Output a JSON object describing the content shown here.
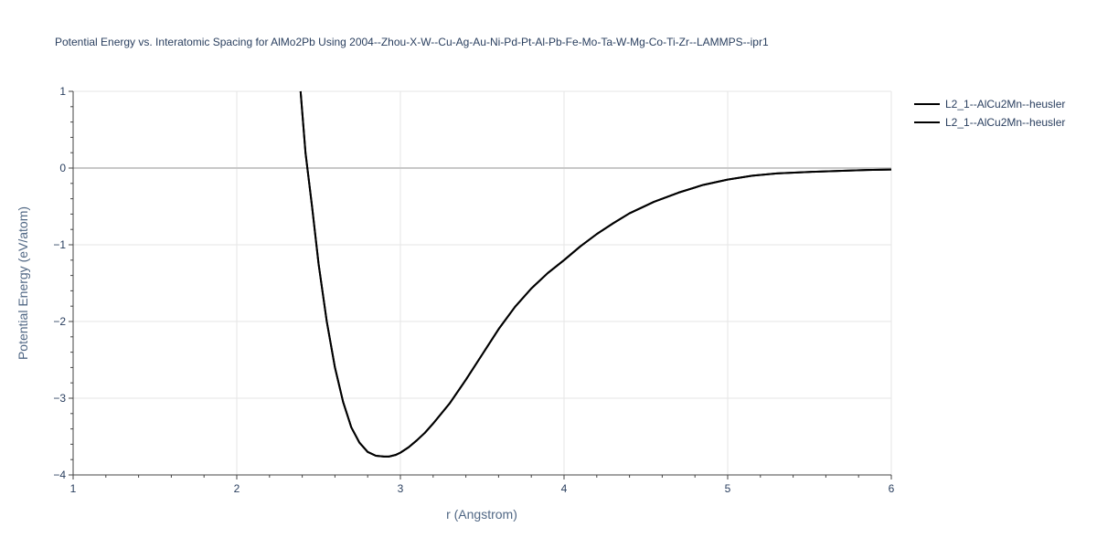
{
  "chart_data": {
    "type": "line",
    "title": "Potential Energy vs. Interatomic Spacing for AlMo2Pb Using 2004--Zhou-X-W--Cu-Ag-Au-Ni-Pd-Pt-Al-Pb-Fe-Mo-Ta-W-Mg-Co-Ti-Zr--LAMMPS--ipr1",
    "xlabel": "r (Angstrom)",
    "ylabel": "Potential Energy (eV/atom)",
    "xlim": [
      1,
      6
    ],
    "ylim": [
      -4,
      1
    ],
    "x_ticks": [
      "1",
      "2",
      "3",
      "4",
      "5",
      "6"
    ],
    "y_ticks": [
      "1",
      "0",
      "−1",
      "−2",
      "−3",
      "−4"
    ],
    "grid": true,
    "legend_position": "top-right",
    "series": [
      {
        "name": "L2_1--AlCu2Mn--heusler",
        "color": "#000000",
        "x": [
          2.39,
          2.42,
          2.46,
          2.5,
          2.55,
          2.6,
          2.65,
          2.7,
          2.75,
          2.8,
          2.85,
          2.9,
          2.93,
          2.97,
          3.0,
          3.05,
          3.1,
          3.15,
          3.2,
          3.3,
          3.4,
          3.5,
          3.6,
          3.7,
          3.8,
          3.9,
          4.0,
          4.1,
          4.2,
          4.3,
          4.4,
          4.55,
          4.7,
          4.85,
          5.0,
          5.15,
          5.3,
          5.5,
          5.7,
          5.85,
          6.0
        ],
        "y": [
          1.0,
          0.2,
          -0.5,
          -1.25,
          -2.0,
          -2.6,
          -3.05,
          -3.38,
          -3.58,
          -3.7,
          -3.75,
          -3.76,
          -3.76,
          -3.74,
          -3.71,
          -3.64,
          -3.55,
          -3.45,
          -3.33,
          -3.07,
          -2.76,
          -2.43,
          -2.1,
          -1.81,
          -1.57,
          -1.37,
          -1.2,
          -1.02,
          -0.86,
          -0.72,
          -0.59,
          -0.44,
          -0.32,
          -0.22,
          -0.15,
          -0.1,
          -0.07,
          -0.05,
          -0.035,
          -0.025,
          -0.02
        ]
      },
      {
        "name": "L2_1--AlCu2Mn--heusler",
        "color": "#000000",
        "x": [
          2.39,
          2.42,
          2.46,
          2.5,
          2.55,
          2.6,
          2.65,
          2.7,
          2.75,
          2.8,
          2.85,
          2.9,
          2.93,
          2.97,
          3.0,
          3.05,
          3.1,
          3.15,
          3.2,
          3.3,
          3.4,
          3.5,
          3.6,
          3.7,
          3.8,
          3.9,
          4.0,
          4.1,
          4.2,
          4.3,
          4.4,
          4.55,
          4.7,
          4.85,
          5.0,
          5.15,
          5.3,
          5.5,
          5.7,
          5.85,
          6.0
        ],
        "y": [
          1.0,
          0.2,
          -0.5,
          -1.25,
          -2.0,
          -2.6,
          -3.05,
          -3.38,
          -3.58,
          -3.7,
          -3.75,
          -3.76,
          -3.76,
          -3.74,
          -3.71,
          -3.64,
          -3.55,
          -3.45,
          -3.33,
          -3.07,
          -2.76,
          -2.43,
          -2.1,
          -1.81,
          -1.57,
          -1.37,
          -1.2,
          -1.02,
          -0.86,
          -0.72,
          -0.59,
          -0.44,
          -0.32,
          -0.22,
          -0.15,
          -0.1,
          -0.07,
          -0.05,
          -0.035,
          -0.025,
          -0.02
        ]
      }
    ]
  },
  "colors": {
    "grid": "#e5e5e5",
    "zero_line": "#c8c8c8",
    "axis_line": "#444444",
    "text": "#2a3f5f"
  }
}
